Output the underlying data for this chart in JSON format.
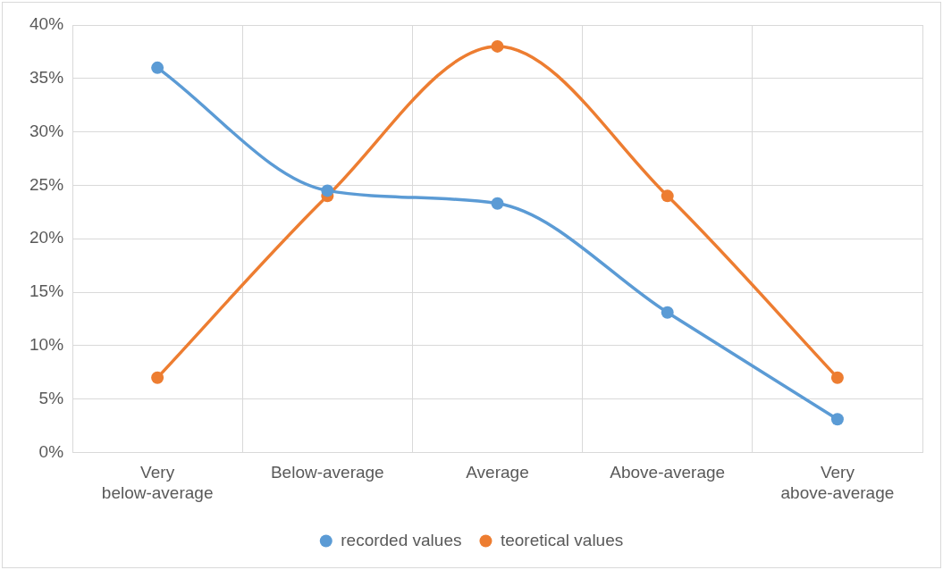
{
  "chart_data": {
    "type": "line",
    "categories": [
      "Very below-average",
      "Below-average",
      "Average",
      "Above-average",
      "Very above-average"
    ],
    "series": [
      {
        "name": "recorded values",
        "color": "#5b9bd5",
        "values": [
          36,
          24.5,
          23.3,
          13.1,
          3.1
        ]
      },
      {
        "name": "teoretical values",
        "color": "#ed7d31",
        "values": [
          7,
          24,
          38,
          24,
          7
        ]
      }
    ],
    "ylim": [
      0,
      40
    ],
    "yticks": [
      {
        "value": 0,
        "label": "0%"
      },
      {
        "value": 5,
        "label": "5%"
      },
      {
        "value": 10,
        "label": "10%"
      },
      {
        "value": 15,
        "label": "15%"
      },
      {
        "value": 20,
        "label": "20%"
      },
      {
        "value": 25,
        "label": "25%"
      },
      {
        "value": 30,
        "label": "30%"
      },
      {
        "value": 35,
        "label": "35%"
      },
      {
        "value": 40,
        "label": "40%"
      }
    ],
    "grid": true,
    "legend": "bottom",
    "marker": "circle",
    "line_style": "solid"
  }
}
